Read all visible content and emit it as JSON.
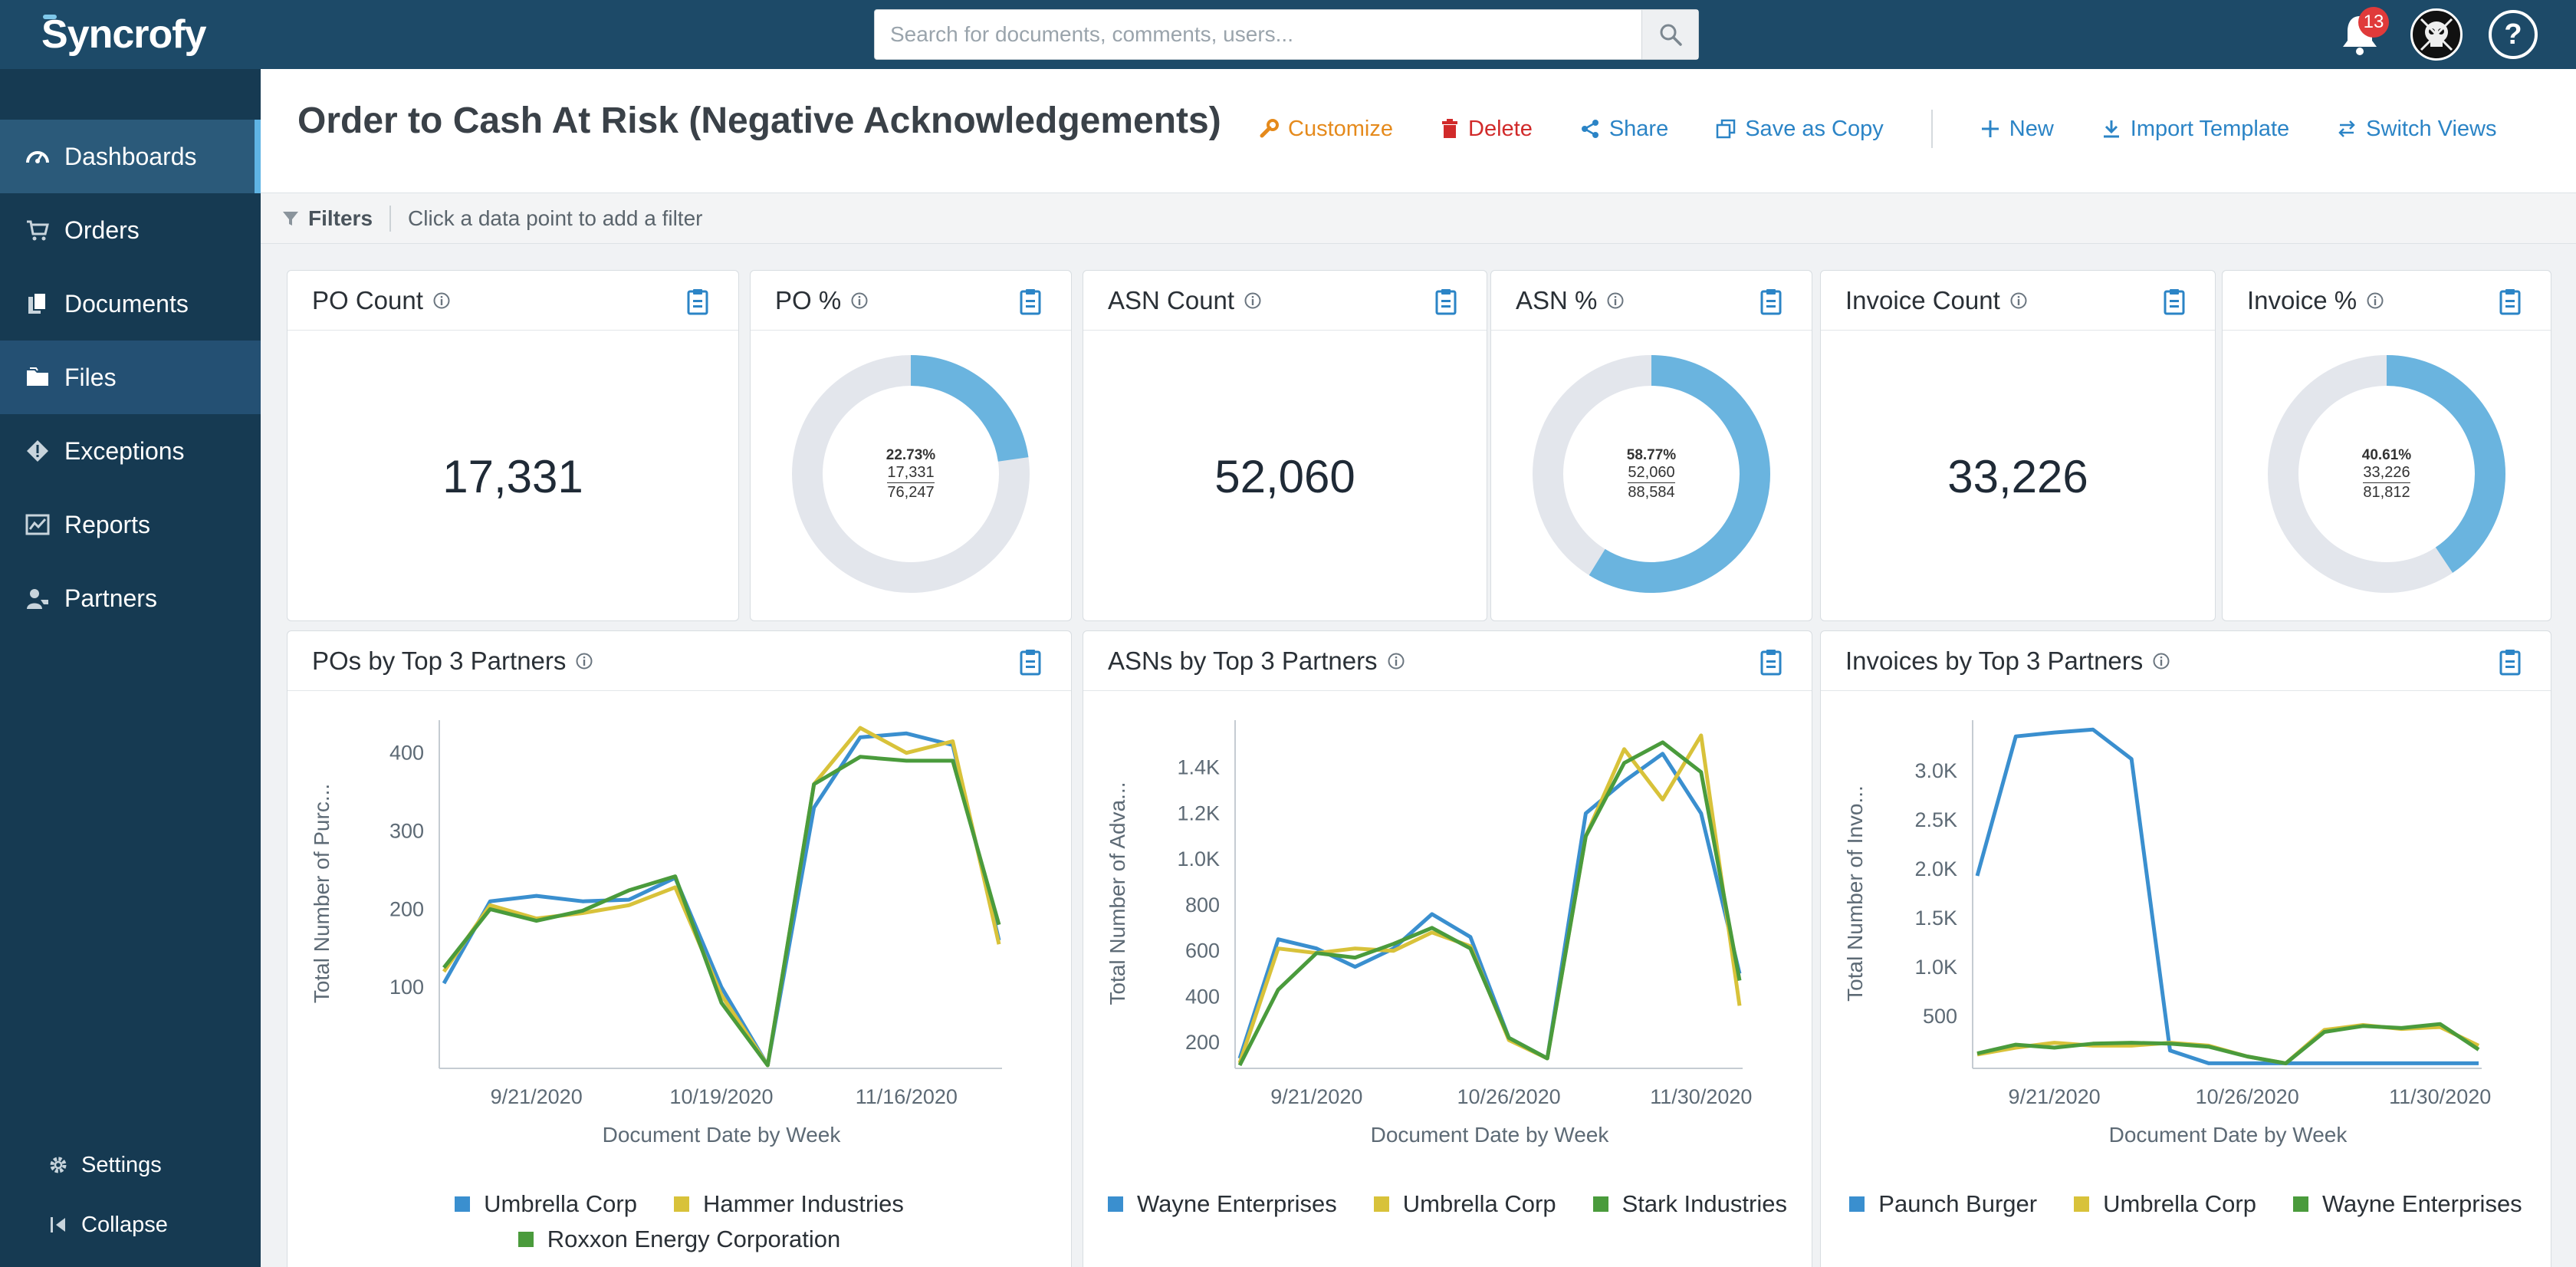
{
  "app": {
    "logo_text": "yncrofy",
    "logo_initial": "S",
    "search_placeholder": "Search for documents, comments, users...",
    "notification_count": "13",
    "help_label": "?"
  },
  "colors": {
    "topbar": "#1d4a68",
    "sidebar": "#163a52",
    "accent_blue": "#2b84c6",
    "series_blue": "#3a8fcf",
    "series_yellow": "#d8c23a",
    "series_green": "#4a9b3c",
    "donut_fill": "#6ab4df",
    "donut_track": "#e3e6ec"
  },
  "sidebar": {
    "items": [
      {
        "label": "Dashboards",
        "icon": "dashboard-icon"
      },
      {
        "label": "Orders",
        "icon": "cart-icon"
      },
      {
        "label": "Documents",
        "icon": "documents-icon"
      },
      {
        "label": "Files",
        "icon": "folder-icon"
      },
      {
        "label": "Exceptions",
        "icon": "exception-icon"
      },
      {
        "label": "Reports",
        "icon": "reports-icon"
      },
      {
        "label": "Partners",
        "icon": "partners-icon"
      }
    ],
    "settings_label": "Settings",
    "collapse_label": "Collapse"
  },
  "header": {
    "title": "Order to Cash At Risk (Negative Acknowledgements)",
    "actions": {
      "customize": "Customize",
      "delete": "Delete",
      "share": "Share",
      "save_as_copy": "Save as Copy",
      "new": "New",
      "import_template": "Import Template",
      "switch_views": "Switch Views"
    }
  },
  "filters": {
    "label": "Filters",
    "hint": "Click a data point to add a filter"
  },
  "kpis": {
    "po_count": {
      "title": "PO Count",
      "value": "17,331"
    },
    "po_pct": {
      "title": "PO %",
      "percent": "22.73%",
      "numerator": "17,331",
      "denominator": "76,247",
      "fraction": 0.2273
    },
    "asn_count": {
      "title": "ASN Count",
      "value": "52,060"
    },
    "asn_pct": {
      "title": "ASN %",
      "percent": "58.77%",
      "numerator": "52,060",
      "denominator": "88,584",
      "fraction": 0.5877
    },
    "invoice_count": {
      "title": "Invoice Count",
      "value": "33,226"
    },
    "invoice_pct": {
      "title": "Invoice %",
      "percent": "40.61%",
      "numerator": "33,226",
      "denominator": "81,812",
      "fraction": 0.4061
    }
  },
  "chart_data": [
    {
      "type": "line",
      "title": "POs by Top 3 Partners",
      "xlabel": "Document Date by Week",
      "ylabel": "Total Number of Purc...",
      "ylim": [
        0,
        440
      ],
      "yticks": [
        100,
        200,
        300,
        400
      ],
      "ytick_labels": [
        "100",
        "200",
        "300",
        "400"
      ],
      "x_tick_labels": [
        "9/21/2020",
        "10/19/2020",
        "11/16/2020"
      ],
      "x_tick_index": [
        2,
        6,
        10
      ],
      "grid": false,
      "legend": "bottom",
      "series": [
        {
          "name": "Umbrella Corp",
          "color": "#3a8fcf",
          "values": [
            105,
            210,
            217,
            210,
            212,
            240,
            100,
            0,
            330,
            420,
            425,
            410,
            160
          ]
        },
        {
          "name": "Hammer Industries",
          "color": "#d8c23a",
          "values": [
            120,
            205,
            188,
            195,
            205,
            228,
            90,
            0,
            360,
            432,
            400,
            415,
            155
          ]
        },
        {
          "name": "Roxxon Energy Corporation",
          "color": "#4a9b3c",
          "values": [
            125,
            200,
            185,
            198,
            224,
            242,
            80,
            0,
            360,
            395,
            390,
            390,
            180
          ]
        }
      ]
    },
    {
      "type": "line",
      "title": "ASNs by Top 3 Partners",
      "xlabel": "Document Date by Week",
      "ylabel": "Total Number of Adva...",
      "ylim": [
        100,
        1600
      ],
      "yticks": [
        200,
        400,
        600,
        800,
        1000,
        1200,
        1400
      ],
      "ytick_labels": [
        "200",
        "400",
        "600",
        "800",
        "1.0K",
        "1.2K",
        "1.4K"
      ],
      "x_tick_labels": [
        "9/21/2020",
        "10/26/2020",
        "11/30/2020"
      ],
      "x_tick_index": [
        2,
        7,
        12
      ],
      "grid": false,
      "legend": "bottom",
      "series": [
        {
          "name": "Wayne Enterprises",
          "color": "#3a8fcf",
          "values": [
            130,
            650,
            610,
            530,
            610,
            760,
            660,
            220,
            130,
            1200,
            1340,
            1460,
            1200,
            500
          ]
        },
        {
          "name": "Umbrella Corp",
          "color": "#d8c23a",
          "values": [
            110,
            610,
            590,
            610,
            600,
            680,
            620,
            210,
            130,
            1100,
            1480,
            1260,
            1540,
            360
          ]
        },
        {
          "name": "Stark Industries",
          "color": "#4a9b3c",
          "values": [
            100,
            430,
            590,
            570,
            630,
            700,
            610,
            220,
            130,
            1100,
            1420,
            1510,
            1380,
            470
          ]
        }
      ]
    },
    {
      "type": "line",
      "title": "Invoices by Top 3 Partners",
      "xlabel": "Document Date by Week",
      "ylabel": "Total Number of Invo...",
      "ylim": [
        0,
        3500
      ],
      "yticks": [
        500,
        1000,
        1500,
        2000,
        2500,
        3000
      ],
      "ytick_labels": [
        "500",
        "1.0K",
        "1.5K",
        "2.0K",
        "2.5K",
        "3.0K"
      ],
      "x_tick_labels": [
        "9/21/2020",
        "10/26/2020",
        "11/30/2020"
      ],
      "x_tick_index": [
        2,
        7,
        12
      ],
      "grid": false,
      "legend": "bottom",
      "series": [
        {
          "name": "Paunch Burger",
          "color": "#3a8fcf",
          "values": [
            1930,
            3350,
            3390,
            3420,
            3120,
            150,
            20,
            20,
            20,
            20,
            20,
            20,
            20,
            20
          ]
        },
        {
          "name": "Umbrella Corp",
          "color": "#d8c23a",
          "values": [
            110,
            180,
            230,
            200,
            200,
            230,
            200,
            90,
            20,
            360,
            410,
            370,
            390,
            200
          ]
        },
        {
          "name": "Wayne Enterprises",
          "color": "#4a9b3c",
          "values": [
            120,
            210,
            180,
            220,
            230,
            220,
            190,
            90,
            20,
            340,
            400,
            380,
            420,
            160
          ]
        }
      ]
    }
  ]
}
